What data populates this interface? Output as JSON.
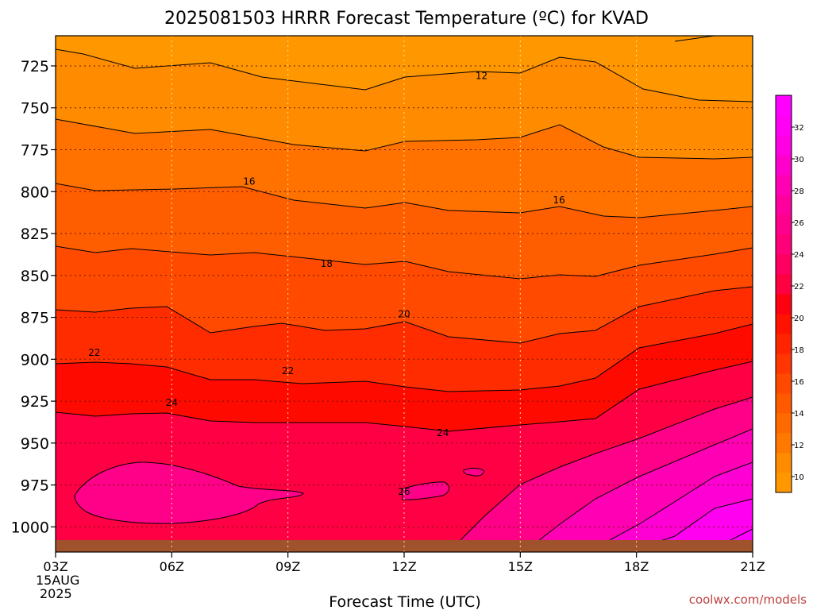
{
  "chart_data": {
    "type": "heatmap",
    "title": "2025081503 HRRR Forecast Temperature (ºC) for KVAD",
    "xlabel": "Forecast Time (UTC)",
    "ylabel": "",
    "x_tick_labels": [
      "03Z",
      "06Z",
      "09Z",
      "12Z",
      "15Z",
      "18Z",
      "21Z"
    ],
    "x_tick_hours": [
      3,
      6,
      9,
      12,
      15,
      18,
      21
    ],
    "x_date_labels": [
      "15AUG",
      "2025"
    ],
    "y_tick_labels": [
      "725",
      "750",
      "775",
      "800",
      "825",
      "850",
      "875",
      "900",
      "925",
      "950",
      "975",
      "1000"
    ],
    "y_tick_values": [
      725,
      750,
      775,
      800,
      825,
      850,
      875,
      900,
      925,
      950,
      975,
      1000
    ],
    "xlim_hours": [
      3,
      21
    ],
    "ylim_pressure_hpa": [
      707,
      1015
    ],
    "pressure_axis": "inverted",
    "grid": "dotted",
    "colorbar": {
      "position": "right",
      "tick_labels": [
        "10",
        "12",
        "14",
        "16",
        "18",
        "20",
        "22",
        "24",
        "26",
        "28",
        "30",
        "32"
      ],
      "levels": [
        9,
        10,
        11,
        12,
        13,
        14,
        15,
        16,
        17,
        18,
        19,
        20,
        21,
        22,
        23,
        24,
        25,
        26,
        27,
        28,
        29,
        30,
        31,
        32,
        33,
        34
      ],
      "colors": [
        "#ff9800",
        "#ff8c00",
        "#ff7800",
        "#ff6a00",
        "#ff5a00",
        "#ff4800",
        "#ff3600",
        "#ff2400",
        "#ff1200",
        "#ff0010",
        "#ff0040",
        "#ff0060",
        "#ff0078",
        "#ff008c",
        "#ff009e",
        "#ff00b4",
        "#ff00cc",
        "#ff00e2",
        "#ff00f4",
        "#ff00ff"
      ]
    },
    "contour_labels": [
      {
        "text": "12",
        "hour": 14.0,
        "hpa": 731
      },
      {
        "text": "16",
        "hour": 8.0,
        "hpa": 794
      },
      {
        "text": "16",
        "hour": 16.0,
        "hpa": 805
      },
      {
        "text": "18",
        "hour": 10.0,
        "hpa": 843
      },
      {
        "text": "20",
        "hour": 12.0,
        "hpa": 873
      },
      {
        "text": "22",
        "hour": 4.0,
        "hpa": 896
      },
      {
        "text": "22",
        "hour": 9.0,
        "hpa": 907
      },
      {
        "text": "24",
        "hour": 6.0,
        "hpa": 926
      },
      {
        "text": "24",
        "hour": 13.0,
        "hpa": 944
      },
      {
        "text": "26",
        "hour": 12.0,
        "hpa": 979
      }
    ],
    "terrain_color": "#a0522d",
    "surface_pressure_hpa": 1008
  },
  "credit": "coolwx.com/models"
}
